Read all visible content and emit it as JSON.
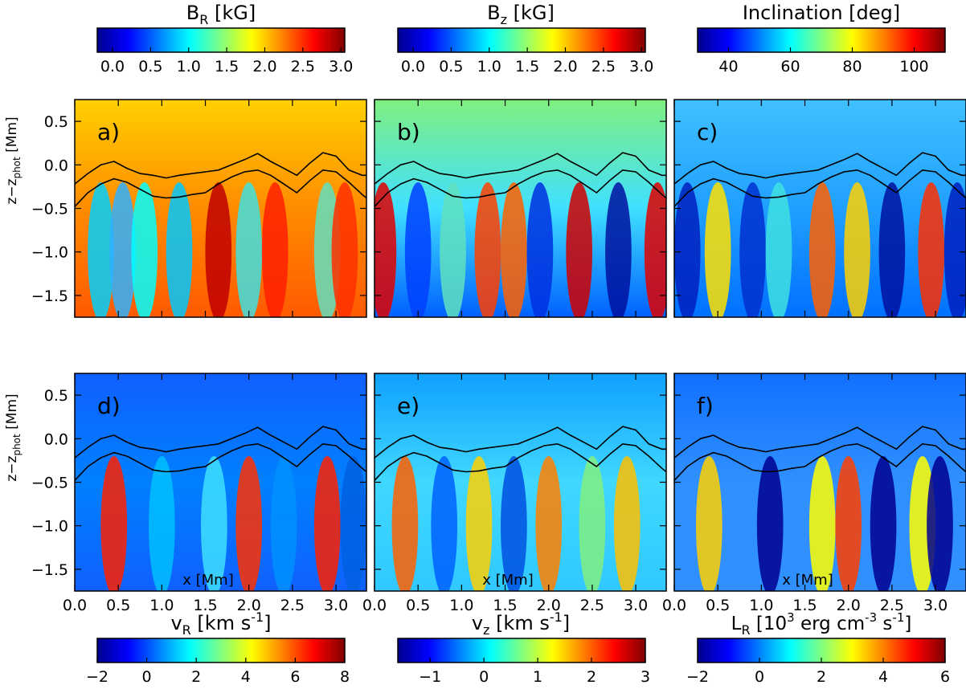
{
  "colormap": [
    "#00008f",
    "#0000ff",
    "#0080ff",
    "#00ffff",
    "#80ff80",
    "#ffff00",
    "#ff8000",
    "#ff0000",
    "#800000"
  ],
  "colorbars": [
    {
      "id": "br",
      "title_main": "B",
      "title_sub": "R",
      "title_rest": " [kG]",
      "ticks": [
        "0.0",
        "0.5",
        "1.0",
        "1.5",
        "2.0",
        "2.5",
        "3.0"
      ],
      "tick_values": [
        0,
        0.5,
        1,
        1.5,
        2,
        2.5,
        3
      ],
      "range": [
        -0.2,
        3.05
      ]
    },
    {
      "id": "bz",
      "title_main": "B",
      "title_sub": "z",
      "title_rest": " [kG]",
      "ticks": [
        "0.0",
        "0.5",
        "1.0",
        "1.5",
        "2.0",
        "2.5",
        "3.0"
      ],
      "tick_values": [
        0,
        0.5,
        1,
        1.5,
        2,
        2.5,
        3
      ],
      "range": [
        -0.2,
        3.05
      ]
    },
    {
      "id": "inc",
      "title_main": "Inclination [deg]",
      "title_sub": "",
      "title_rest": "",
      "ticks": [
        "40",
        "60",
        "80",
        "100"
      ],
      "tick_values": [
        40,
        60,
        80,
        100
      ],
      "range": [
        30,
        110
      ]
    },
    {
      "id": "vr",
      "title_main": "v",
      "title_sub": "R",
      "title_rest": " [km s",
      "title_sup": "-1",
      "title_end": "]",
      "ticks": [
        "−2",
        "0",
        "2",
        "4",
        "6",
        "8"
      ],
      "tick_values": [
        -2,
        0,
        2,
        4,
        6,
        8
      ],
      "range": [
        -2,
        8
      ]
    },
    {
      "id": "vz",
      "title_main": "v",
      "title_sub": "z",
      "title_rest": " [km s",
      "title_sup": "-1",
      "title_end": "]",
      "ticks": [
        "−1",
        "0",
        "1",
        "2",
        "3"
      ],
      "tick_values": [
        -1,
        0,
        1,
        2,
        3
      ],
      "range": [
        -1.6,
        3
      ]
    },
    {
      "id": "lr",
      "title_main": "L",
      "title_sub": "R",
      "title_rest": " [10",
      "title_sup": "3",
      "title_end": " erg cm",
      "title_sup2": "-3",
      "title_end2": " s",
      "title_sup3": "-1",
      "title_end3": "]",
      "ticks": [
        "−2",
        "0",
        "2",
        "4",
        "6"
      ],
      "tick_values": [
        -2,
        0,
        2,
        4,
        6
      ],
      "range": [
        -2,
        6
      ]
    }
  ],
  "panels": [
    {
      "id": "a",
      "label": "a)"
    },
    {
      "id": "b",
      "label": "b)"
    },
    {
      "id": "c",
      "label": "c)"
    },
    {
      "id": "d",
      "label": "d)"
    },
    {
      "id": "e",
      "label": "e)"
    },
    {
      "id": "f",
      "label": "f)"
    }
  ],
  "axes": {
    "xlabel": "x [Mm]",
    "ylabel_main": "z−z",
    "ylabel_sub": "phot",
    "ylabel_rest": " [Mm]",
    "xlim": [
      0,
      3.35
    ],
    "ylim": [
      -1.75,
      0.75
    ],
    "xticks": [
      "0.0",
      "0.5",
      "1.0",
      "1.5",
      "2.0",
      "2.5",
      "3.0"
    ],
    "xtick_values": [
      0,
      0.5,
      1,
      1.5,
      2,
      2.5,
      3
    ],
    "yticks": [
      "0.5",
      "0.0",
      "−0.5",
      "−1.0",
      "−1.5"
    ],
    "ytick_values": [
      0.5,
      0,
      -0.5,
      -1,
      -1.5
    ]
  },
  "chart_data": {
    "type": "heatmap",
    "panels": [
      "a) B_R [kG]",
      "b) B_z [kG]",
      "c) Inclination [deg]",
      "d) v_R [km s^-1]",
      "e) v_z [km s^-1]",
      "f) L_R [10^3 erg cm^-3 s^-1]"
    ],
    "x": [
      0.0,
      0.15,
      0.3,
      0.45,
      0.6,
      0.75,
      0.9,
      1.05,
      1.2,
      1.35,
      1.5,
      1.65,
      1.8,
      1.95,
      2.1,
      2.25,
      2.4,
      2.55,
      2.7,
      2.85,
      3.0,
      3.15,
      3.3,
      3.35
    ],
    "contour_upper_z": [
      -0.22,
      -0.1,
      0.0,
      0.04,
      -0.04,
      -0.1,
      -0.12,
      -0.15,
      -0.12,
      -0.1,
      -0.08,
      -0.06,
      0.0,
      0.06,
      0.13,
      0.04,
      -0.04,
      -0.12,
      0.02,
      0.14,
      0.1,
      -0.06,
      -0.12,
      -0.12
    ],
    "contour_lower_z": [
      -0.48,
      -0.32,
      -0.22,
      -0.16,
      -0.2,
      -0.28,
      -0.36,
      -0.38,
      -0.37,
      -0.34,
      -0.32,
      -0.22,
      -0.14,
      -0.08,
      -0.06,
      -0.12,
      -0.22,
      -0.32,
      -0.18,
      -0.06,
      -0.08,
      -0.2,
      -0.34,
      -0.38
    ],
    "xlim": [
      0,
      3.35
    ],
    "ylim": [
      -1.75,
      0.75
    ],
    "xlabel": "x [Mm]",
    "ylabel": "z−z_phot [Mm]"
  }
}
